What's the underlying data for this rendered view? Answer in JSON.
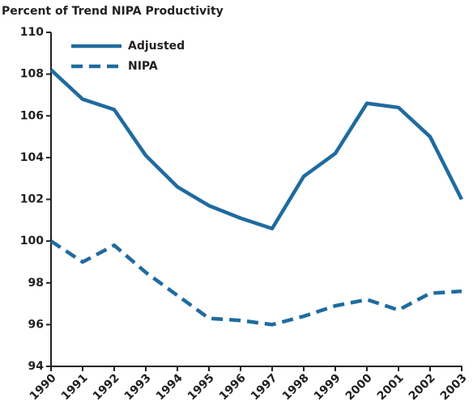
{
  "chart_data": {
    "type": "line",
    "title": "Percent of Trend NIPA Productivity",
    "x": [
      1990,
      1991,
      1992,
      1993,
      1994,
      1995,
      1996,
      1997,
      1998,
      1999,
      2000,
      2001,
      2002,
      2003
    ],
    "series": [
      {
        "name": "Adjusted",
        "color": "#1f6b9e",
        "dash": "solid",
        "values": [
          108.2,
          106.8,
          106.3,
          104.1,
          102.6,
          101.7,
          101.1,
          100.6,
          103.1,
          104.2,
          106.6,
          106.4,
          105.0,
          102.0
        ]
      },
      {
        "name": "NIPA",
        "color": "#1f6b9e",
        "dash": "dashed",
        "values": [
          100.0,
          99.0,
          99.8,
          98.5,
          97.4,
          96.3,
          96.2,
          96.0,
          96.4,
          96.9,
          97.2,
          96.7,
          97.5,
          97.6
        ]
      }
    ],
    "xlim": [
      1990,
      2003
    ],
    "xticks": [
      1990,
      1991,
      1992,
      1993,
      1994,
      1995,
      1996,
      1997,
      1998,
      1999,
      2000,
      2001,
      2002,
      2003
    ],
    "ylim": [
      94,
      110
    ],
    "yticks": [
      94,
      96,
      98,
      100,
      102,
      104,
      106,
      108,
      110
    ],
    "grid": false,
    "legend": "upper left"
  }
}
